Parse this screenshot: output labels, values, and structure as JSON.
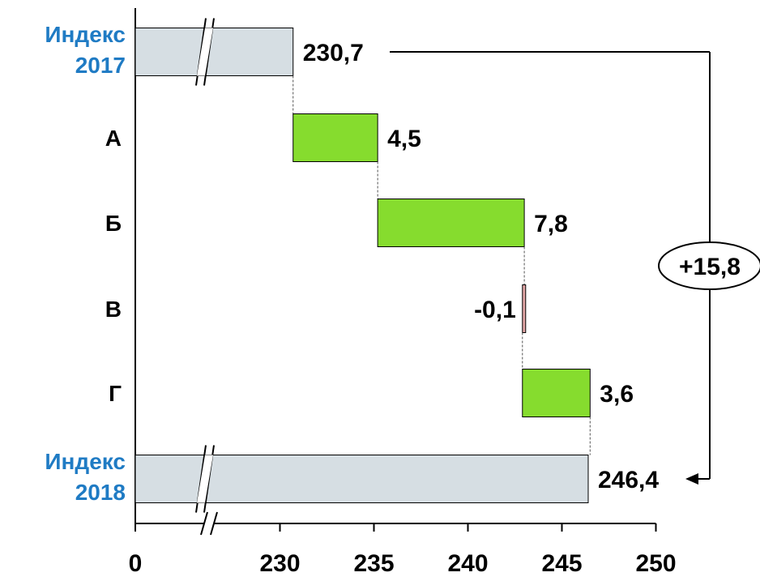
{
  "chart_data": {
    "type": "bar",
    "subtype": "waterfall",
    "orientation": "horizontal",
    "x_axis": {
      "ticks": [
        "0",
        "230",
        "235",
        "240",
        "245",
        "250"
      ],
      "tick_values": [
        null,
        230,
        235,
        240,
        245,
        250
      ],
      "range": [
        228,
        250
      ],
      "axis_break": true
    },
    "rows": [
      {
        "category": [
          "Индекс",
          "2017"
        ],
        "kind": "total",
        "start": 0,
        "end": 230.7,
        "label": "230,7"
      },
      {
        "category": [
          "А"
        ],
        "kind": "increase",
        "start": 230.7,
        "end": 235.2,
        "label": "4,5"
      },
      {
        "category": [
          "Б"
        ],
        "kind": "increase",
        "start": 235.2,
        "end": 243.0,
        "label": "7,8"
      },
      {
        "category": [
          "В"
        ],
        "kind": "decrease",
        "start": 243.0,
        "end": 242.9,
        "label": "-0,1"
      },
      {
        "category": [
          "Г"
        ],
        "kind": "increase",
        "start": 242.9,
        "end": 246.5,
        "label": "3,6"
      },
      {
        "category": [
          "Индекс",
          "2018"
        ],
        "kind": "total",
        "start": 0,
        "end": 246.4,
        "label": "246,4"
      }
    ],
    "total_change": {
      "label": "+15,8",
      "from": 0,
      "to": 5
    },
    "colors": {
      "total_fill": "#d6dee3",
      "increase_fill": "#86dc2e",
      "decrease_fill": "#e2a6a6",
      "index_label": "#1f7bc4",
      "text": "#000000"
    },
    "grid": false,
    "legend": "none"
  }
}
